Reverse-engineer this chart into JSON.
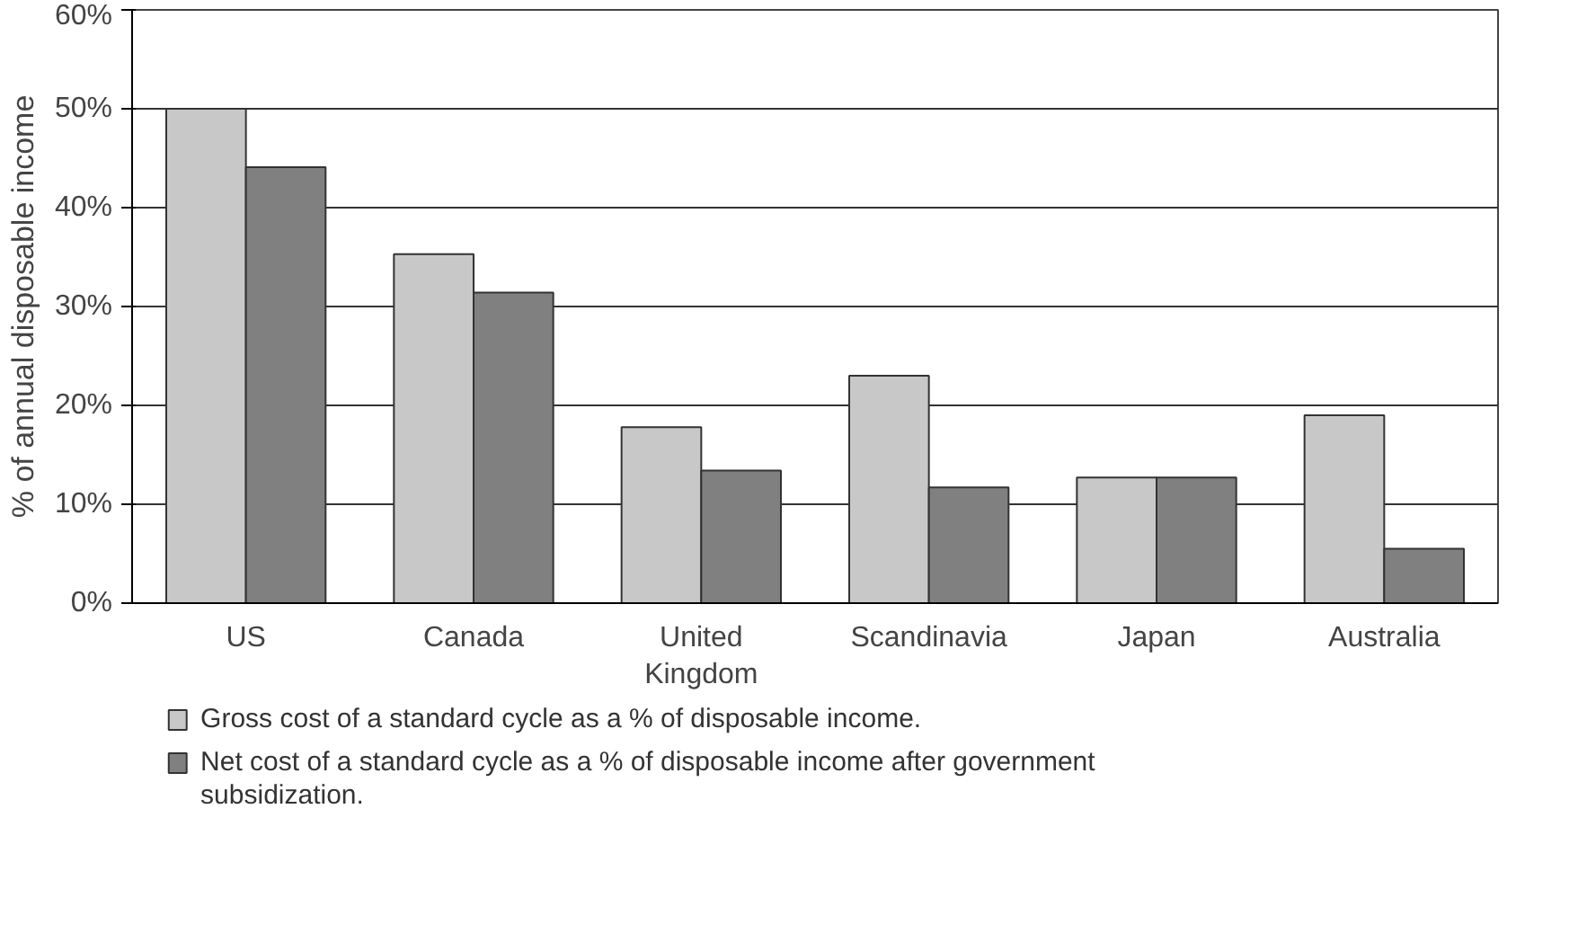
{
  "chart_data": {
    "type": "bar",
    "ylabel": "% of annual disposable income",
    "categories": [
      "US",
      "Canada",
      "United Kingdom",
      "Scandinavia",
      "Japan",
      "Australia"
    ],
    "series": [
      {
        "name": "Gross cost of a standard cycle as a % of disposable income.",
        "color": "#c8c8c8",
        "values": [
          50,
          35.3,
          17.8,
          23,
          12.7,
          19
        ]
      },
      {
        "name": "Net cost of a standard cycle as a % of disposable income after government subsidization.",
        "color": "#808080",
        "values": [
          44.1,
          31.4,
          13.4,
          11.7,
          12.7,
          5.5
        ]
      }
    ],
    "ylim": [
      0,
      60
    ],
    "yticks": [
      {
        "value": 0,
        "label": "0%"
      },
      {
        "value": 10,
        "label": "10%"
      },
      {
        "value": 20,
        "label": "20%"
      },
      {
        "value": 30,
        "label": "30%"
      },
      {
        "value": 40,
        "label": "40%"
      },
      {
        "value": 50,
        "label": "50%"
      },
      {
        "value": 60,
        "label": "60%"
      }
    ],
    "grid": "y",
    "legend": "bottom"
  }
}
